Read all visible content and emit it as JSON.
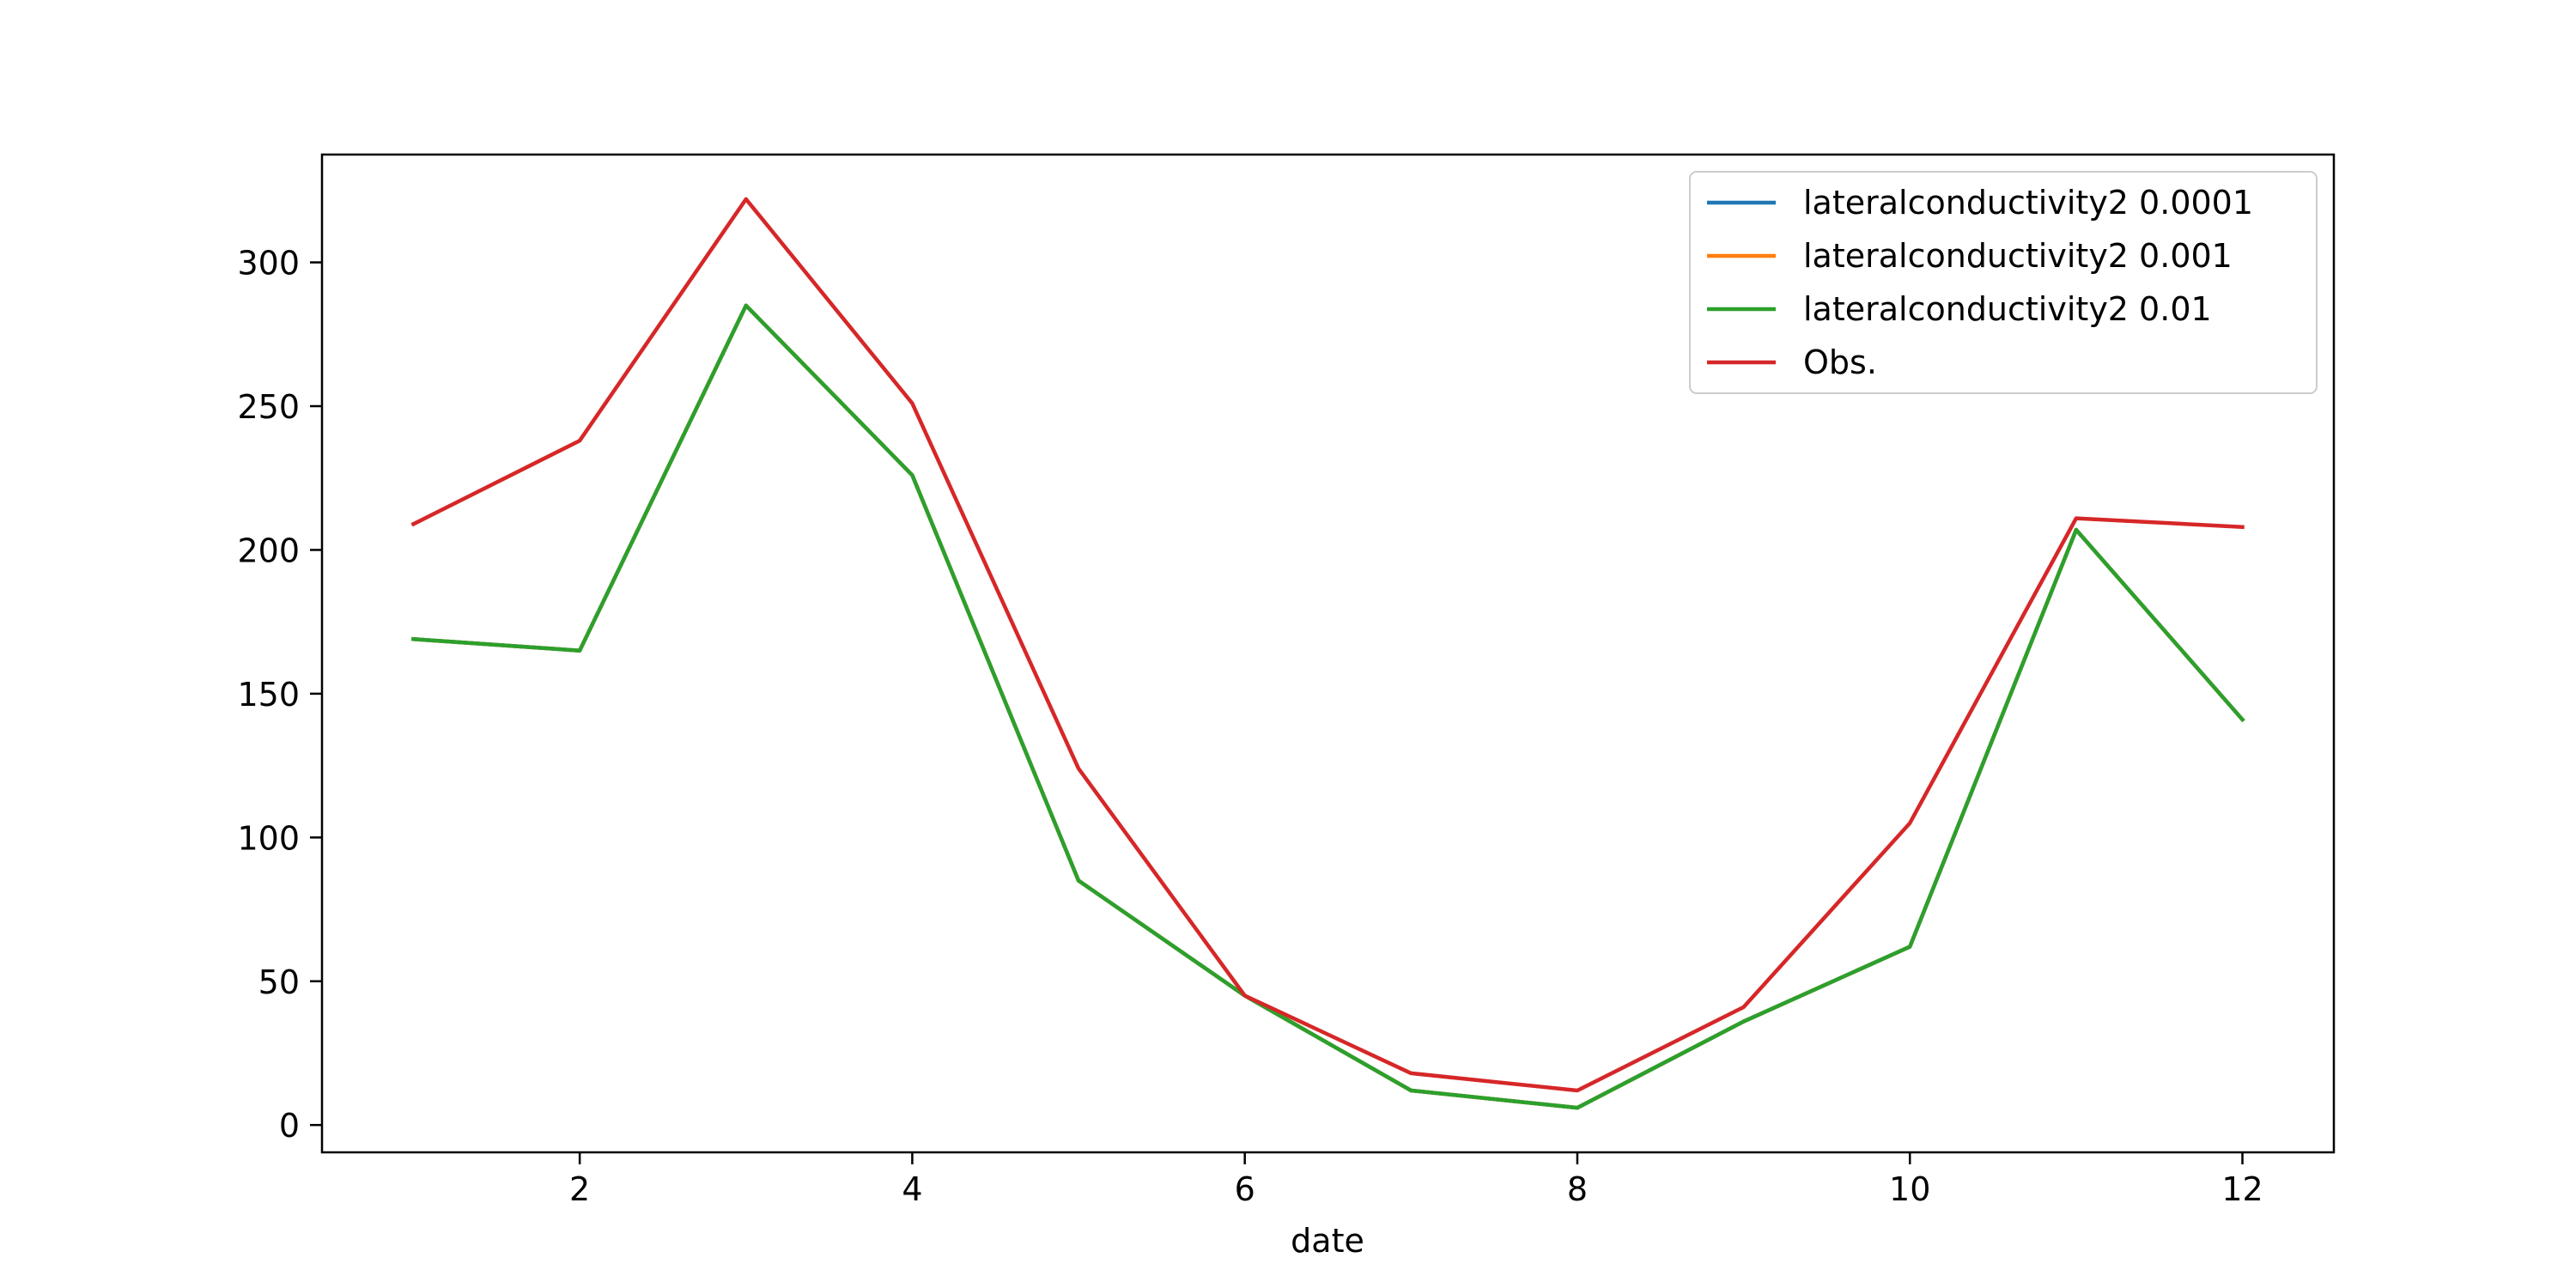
{
  "chart_data": {
    "type": "line",
    "title": "",
    "xlabel": "date",
    "ylabel": "",
    "xlim": [
      0.45,
      12.55
    ],
    "ylim": [
      -9.5,
      337.5
    ],
    "xticks": [
      2,
      4,
      6,
      8,
      10,
      12
    ],
    "xtick_labels": [
      "2",
      "4",
      "6",
      "8",
      "10",
      "12"
    ],
    "yticks": [
      0,
      50,
      100,
      150,
      200,
      250,
      300
    ],
    "ytick_labels": [
      "0",
      "50",
      "100",
      "150",
      "200",
      "250",
      "300"
    ],
    "grid": false,
    "legend_position": "top-right",
    "x": [
      1,
      2,
      3,
      4,
      5,
      6,
      7,
      8,
      9,
      10,
      11,
      12
    ],
    "series": [
      {
        "name": "lateralconductivity2 0.0001",
        "color": "#1f77b4",
        "values": [
          169,
          165,
          285,
          226,
          85,
          45,
          12,
          6,
          36,
          62,
          207,
          141
        ]
      },
      {
        "name": "lateralconductivity2 0.001",
        "color": "#ff7f0e",
        "values": [
          169,
          165,
          285,
          226,
          85,
          45,
          12,
          6,
          36,
          62,
          207,
          141
        ]
      },
      {
        "name": "lateralconductivity2 0.01",
        "color": "#2ca02c",
        "values": [
          169,
          165,
          285,
          226,
          85,
          45,
          12,
          6,
          36,
          62,
          207,
          141
        ]
      },
      {
        "name": "Obs.",
        "color": "#d62728",
        "values": [
          209,
          238,
          322,
          251,
          124,
          45,
          18,
          12,
          41,
          105,
          211,
          208
        ]
      }
    ]
  }
}
